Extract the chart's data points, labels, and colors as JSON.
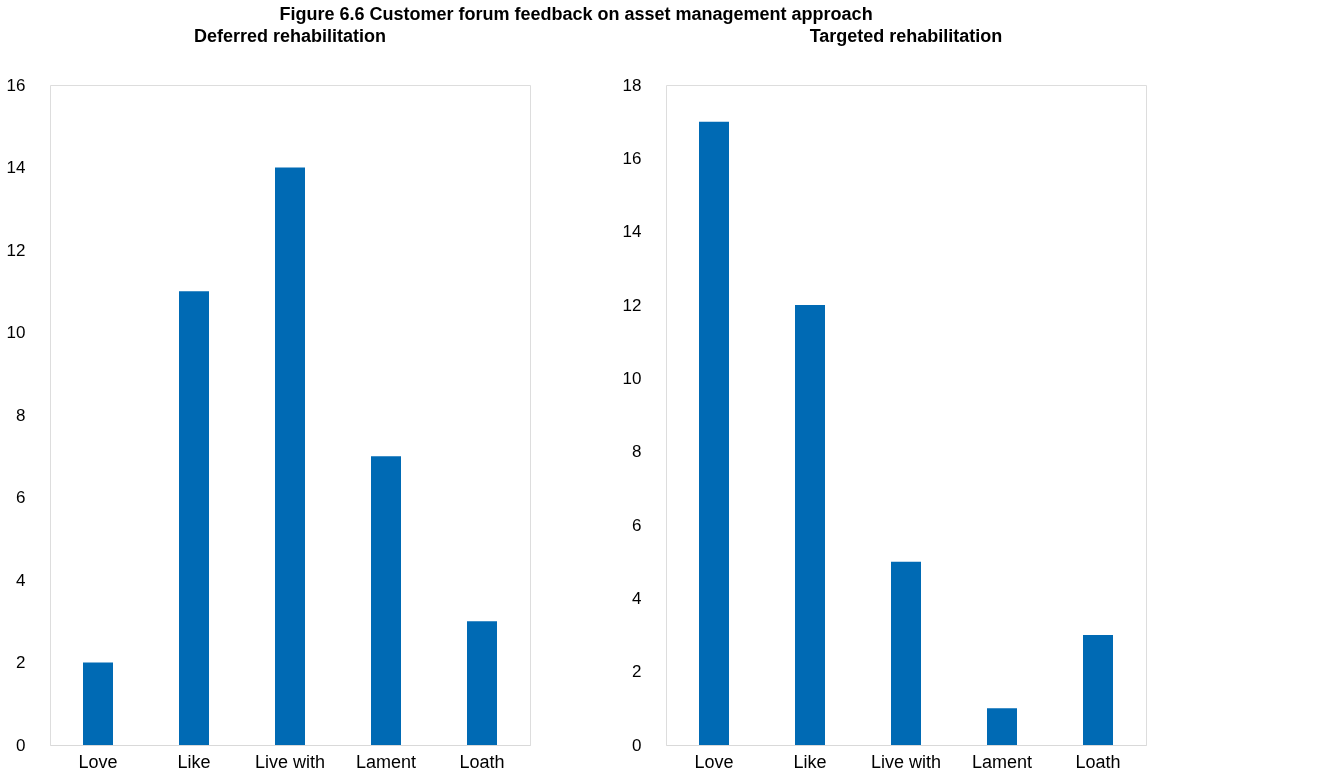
{
  "chart_data": [
    {
      "type": "bar",
      "title": "Deferred rehabilitation",
      "annotations": [
        "Figure 6.6 Customer forum feedback on asset management approach"
      ],
      "categories": [
        "Love",
        "Like",
        "Live with",
        "Lament",
        "Loath"
      ],
      "values": [
        2,
        11,
        14,
        7,
        3
      ],
      "color": "#006ab4",
      "ylim": [
        0,
        16
      ],
      "yticks": [
        0,
        2,
        4,
        6,
        8,
        10,
        12,
        14,
        16
      ],
      "grid": false
    },
    {
      "type": "bar",
      "title": "Targeted rehabilitation",
      "categories": [
        "Love",
        "Like",
        "Live with",
        "Lament",
        "Loath"
      ],
      "values": [
        17,
        12,
        5,
        1,
        3
      ],
      "color": "#006ab4",
      "ylim": [
        0,
        18
      ],
      "yticks": [
        0,
        2,
        4,
        6,
        8,
        10,
        12,
        14,
        16,
        18
      ],
      "grid": false
    }
  ]
}
